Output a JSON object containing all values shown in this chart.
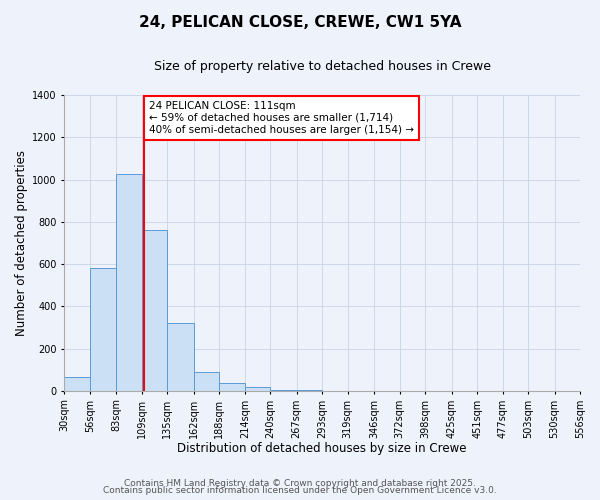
{
  "title": "24, PELICAN CLOSE, CREWE, CW1 5YA",
  "subtitle": "Size of property relative to detached houses in Crewe",
  "xlabel": "Distribution of detached houses by size in Crewe",
  "ylabel": "Number of detached properties",
  "bin_edges": [
    30,
    56,
    83,
    109,
    135,
    162,
    188,
    214,
    240,
    267,
    293,
    319,
    346,
    372,
    398,
    425,
    451,
    477,
    503,
    530,
    556
  ],
  "bin_counts": [
    65,
    580,
    1025,
    760,
    320,
    90,
    38,
    20,
    5,
    2,
    0,
    0,
    0,
    0,
    0,
    0,
    0,
    0,
    0,
    0
  ],
  "bar_facecolor": "#cce0f5",
  "bar_edgecolor": "#5b9bd5",
  "vline_x": 111,
  "vline_color": "red",
  "annotation_text": "24 PELICAN CLOSE: 111sqm\n← 59% of detached houses are smaller (1,714)\n40% of semi-detached houses are larger (1,154) →",
  "annotation_box_facecolor": "white",
  "annotation_box_edgecolor": "red",
  "annotation_fontsize": 7.5,
  "ylim": [
    0,
    1400
  ],
  "yticks": [
    0,
    200,
    400,
    600,
    800,
    1000,
    1200,
    1400
  ],
  "tick_labels": [
    "30sqm",
    "56sqm",
    "83sqm",
    "109sqm",
    "135sqm",
    "162sqm",
    "188sqm",
    "214sqm",
    "240sqm",
    "267sqm",
    "293sqm",
    "319sqm",
    "346sqm",
    "372sqm",
    "398sqm",
    "425sqm",
    "451sqm",
    "477sqm",
    "503sqm",
    "530sqm",
    "556sqm"
  ],
  "footer_line1": "Contains HM Land Registry data © Crown copyright and database right 2025.",
  "footer_line2": "Contains public sector information licensed under the Open Government Licence v3.0.",
  "background_color": "#eef2fa",
  "grid_color": "#c8d4e8",
  "title_fontsize": 11,
  "subtitle_fontsize": 9,
  "axis_label_fontsize": 8.5,
  "tick_fontsize": 7,
  "footer_fontsize": 6.5
}
